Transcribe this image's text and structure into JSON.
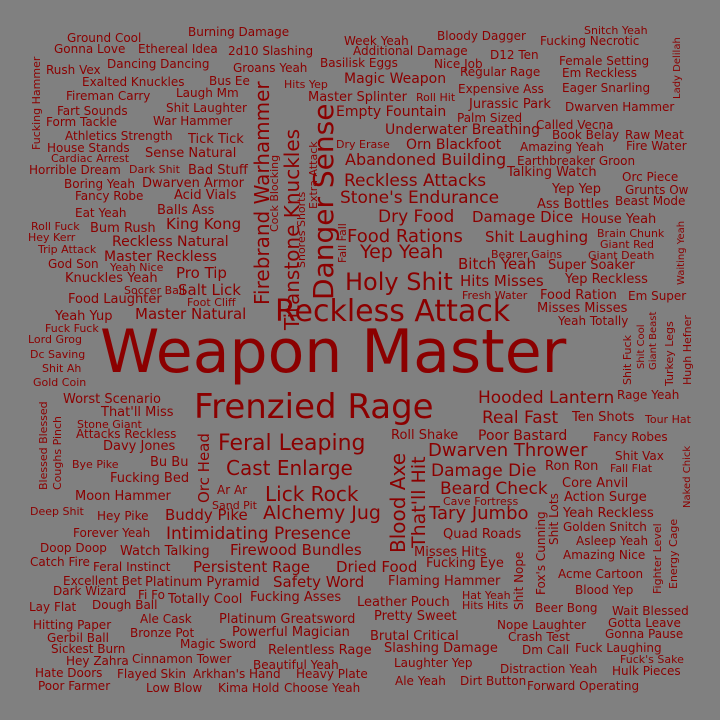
{
  "background_color": "#808080",
  "text_color": "#8b0000",
  "words": [
    {
      "text": "Weapon Master",
      "size": 60
    },
    {
      "text": "Frenzied Rage",
      "size": 34
    },
    {
      "text": "Reckless Attack",
      "size": 30
    },
    {
      "text": "Danger Sense",
      "size": 28
    },
    {
      "text": "Holy Shit",
      "size": 24
    },
    {
      "text": "Feral Leaping",
      "size": 22
    },
    {
      "text": "Cast Enlarge",
      "size": 20
    },
    {
      "text": "Firebrand Warhammer",
      "size": 20
    },
    {
      "text": "Titanstone Knuckles",
      "size": 20
    },
    {
      "text": "Lick Rock",
      "size": 20
    },
    {
      "text": "Blood Axe",
      "size": 20
    },
    {
      "text": "Yep Yeah",
      "size": 19
    },
    {
      "text": "That'll Hit",
      "size": 19
    },
    {
      "text": "Alchemy Jug",
      "size": 19
    },
    {
      "text": "Food Rations",
      "size": 18
    },
    {
      "text": "Dwarven Thrower",
      "size": 18
    },
    {
      "text": "Tary Jumbo",
      "size": 18
    },
    {
      "text": "Beard Check",
      "size": 17
    },
    {
      "text": "Damage Die",
      "size": 17
    },
    {
      "text": "Intimidating Presence",
      "size": 17
    },
    {
      "text": "Reckless Attacks",
      "size": 17
    },
    {
      "text": "Stone's Endurance",
      "size": 17
    },
    {
      "text": "Dry Food",
      "size": 17
    },
    {
      "text": "Hooded Lantern",
      "size": 17
    },
    {
      "text": "Real Fast",
      "size": 17
    },
    {
      "text": "Abandoned Building",
      "size": 16
    },
    {
      "text": "Shit Laughing",
      "size": 15
    },
    {
      "text": "Bitch Yeah",
      "size": 15
    },
    {
      "text": "Hits Misses",
      "size": 15
    },
    {
      "text": "Buddy Pike",
      "size": 15
    },
    {
      "text": "Damage Dice",
      "size": 15
    },
    {
      "text": "Persistent Rage",
      "size": 15
    },
    {
      "text": "Dried Food",
      "size": 15
    },
    {
      "text": "Safety Word",
      "size": 15
    },
    {
      "text": "Firewood Bundles",
      "size": 15
    },
    {
      "text": "Pro Tip",
      "size": 15
    },
    {
      "text": "Salt Lick",
      "size": 15
    },
    {
      "text": "King Kong",
      "size": 15
    },
    {
      "text": "Master Natural",
      "size": 15
    },
    {
      "text": "Reckless Natural",
      "size": 14
    },
    {
      "text": "Master Reckless",
      "size": 14
    },
    {
      "text": "Poor Bastard",
      "size": 14
    },
    {
      "text": "Underwater Breathing",
      "size": 14
    },
    {
      "text": "Orn Blackfoot",
      "size": 14
    },
    {
      "text": "Empty Fountain",
      "size": 14
    },
    {
      "text": "Magic Weapon",
      "size": 14
    },
    {
      "text": "Master Splinter",
      "size": 13
    },
    {
      "text": "Super Soaker",
      "size": 13
    },
    {
      "text": "Yep Reckless",
      "size": 13
    },
    {
      "text": "Ten Shots",
      "size": 13
    },
    {
      "text": "Worst Scenario",
      "size": 13
    },
    {
      "text": "That'll Miss",
      "size": 13
    },
    {
      "text": "Ron Ron",
      "size": 13
    },
    {
      "text": "Fucking Bed",
      "size": 13
    },
    {
      "text": "Moon Hammer",
      "size": 13
    },
    {
      "text": "Quad Roads",
      "size": 13
    },
    {
      "text": "Misses Hits",
      "size": 13
    },
    {
      "text": "Fucking Eye",
      "size": 13
    },
    {
      "text": "Flaming Hammer",
      "size": 13
    },
    {
      "text": "Totally Cool",
      "size": 13
    },
    {
      "text": "Fucking Asses",
      "size": 13
    },
    {
      "text": "Leather Pouch",
      "size": 13
    },
    {
      "text": "Pretty Sweet",
      "size": 13
    },
    {
      "text": "Platinum Greatsword",
      "size": 13
    },
    {
      "text": "Powerful Magician",
      "size": 13
    },
    {
      "text": "Brutal Critical",
      "size": 13
    },
    {
      "text": "Relentless Rage",
      "size": 13
    },
    {
      "text": "Slashing Damage",
      "size": 13
    },
    {
      "text": "Watch Talking",
      "size": 13
    },
    {
      "text": "Platinum Pyramid",
      "size": 13
    },
    {
      "text": "Sense Natural",
      "size": 13
    },
    {
      "text": "Talking Watch",
      "size": 13
    },
    {
      "text": "Acid Vials",
      "size": 13
    },
    {
      "text": "Dwarven Armor",
      "size": 13
    },
    {
      "text": "Bad Stuff",
      "size": 13
    },
    {
      "text": "Tick Tick",
      "size": 13
    },
    {
      "text": "Balls Ass",
      "size": 13
    },
    {
      "text": "Yeah Reckless",
      "size": 13
    },
    {
      "text": "Core Anvil",
      "size": 13
    },
    {
      "text": "Action Surge",
      "size": 13
    },
    {
      "text": "Roll Shake",
      "size": 13
    },
    {
      "text": "Misses Misses",
      "size": 13
    },
    {
      "text": "Yeah Totally",
      "size": 12
    },
    {
      "text": "Food Ration",
      "size": 13
    },
    {
      "text": "Yep Yep",
      "size": 13
    },
    {
      "text": "Ass Bottles",
      "size": 13
    },
    {
      "text": "House Yeah",
      "size": 13
    },
    {
      "text": "Orc Head",
      "size": 15
    },
    {
      "text": "Davy Jones",
      "size": 13
    },
    {
      "text": "Bu Bu",
      "size": 13
    },
    {
      "text": "Attacks Reckless",
      "size": 12
    },
    {
      "text": "Jurassic Park",
      "size": 13
    },
    {
      "text": "Amazing Yeah",
      "size": 12
    },
    {
      "text": "Earthbreaker Groon",
      "size": 12
    },
    {
      "text": "Fancy Robes",
      "size": 12
    },
    {
      "text": "Rage Yeah",
      "size": 12
    },
    {
      "text": "Ar Ar",
      "size": 12
    },
    {
      "text": "Hey Pike",
      "size": 12
    },
    {
      "text": "Forever Yeah",
      "size": 12
    },
    {
      "text": "Doop Doop",
      "size": 12
    },
    {
      "text": "Catch Fire",
      "size": 12
    },
    {
      "text": "Feral Instinct",
      "size": 12
    },
    {
      "text": "Excellent Bet",
      "size": 12
    },
    {
      "text": "Dark Wizard",
      "size": 12
    },
    {
      "text": "Fi Fo",
      "size": 12
    },
    {
      "text": "Lay Flat",
      "size": 12
    },
    {
      "text": "Dough Ball",
      "size": 12
    },
    {
      "text": "Ale Cask",
      "size": 12
    },
    {
      "text": "Hitting Paper",
      "size": 12
    },
    {
      "text": "Bronze Pot",
      "size": 12
    },
    {
      "text": "Gerbil Ball",
      "size": 12
    },
    {
      "text": "Magic Sword",
      "size": 12
    },
    {
      "text": "Sickest Burn",
      "size": 12
    },
    {
      "text": "Hey Zahra",
      "size": 12
    },
    {
      "text": "Cinnamon Tower",
      "size": 12
    },
    {
      "text": "Hate Doors",
      "size": 12
    },
    {
      "text": "Flayed Skin",
      "size": 12
    },
    {
      "text": "Arkhan's Hand",
      "size": 12
    },
    {
      "text": "Poor Farmer",
      "size": 12
    },
    {
      "text": "Low Blow",
      "size": 12
    },
    {
      "text": "Kima Hold",
      "size": 12
    },
    {
      "text": "Choose Yeah",
      "size": 12
    },
    {
      "text": "Heavy Plate",
      "size": 12
    },
    {
      "text": "Beautiful Yeah",
      "size": 12
    },
    {
      "text": "Laughter Yep",
      "size": 12
    },
    {
      "text": "Ale Yeah",
      "size": 12
    },
    {
      "text": "Dirt Button",
      "size": 12
    },
    {
      "text": "Forward Operating",
      "size": 12
    },
    {
      "text": "Distraction Yeah",
      "size": 12
    },
    {
      "text": "Hulk Pieces",
      "size": 12
    },
    {
      "text": "Fuck's Sake",
      "size": 11
    },
    {
      "text": "Dm Call",
      "size": 12
    },
    {
      "text": "Fuck Laughing",
      "size": 12
    },
    {
      "text": "Gonna Pause",
      "size": 12
    },
    {
      "text": "Crash Test",
      "size": 12
    },
    {
      "text": "Nope Laughter",
      "size": 12
    },
    {
      "text": "Gotta Leave",
      "size": 12
    },
    {
      "text": "Beer Bong",
      "size": 12
    },
    {
      "text": "Wait Blessed",
      "size": 12
    },
    {
      "text": "Hat Yeah",
      "size": 11
    },
    {
      "text": "Hits Hits",
      "size": 11
    },
    {
      "text": "Blood Yep",
      "size": 12
    },
    {
      "text": "Acme Cartoon",
      "size": 12
    },
    {
      "text": "Amazing Nice",
      "size": 12
    },
    {
      "text": "Asleep Yeah",
      "size": 12
    },
    {
      "text": "Golden Snitch",
      "size": 12
    },
    {
      "text": "Shit Vax",
      "size": 12
    },
    {
      "text": "Fall Flat",
      "size": 11
    },
    {
      "text": "Cave Fortress",
      "size": 11
    },
    {
      "text": "Sand Pit",
      "size": 11
    },
    {
      "text": "Bye Pike",
      "size": 11
    },
    {
      "text": "Stone Giant",
      "size": 11
    },
    {
      "text": "Deep Shit",
      "size": 11
    },
    {
      "text": "Gold Coin",
      "size": 11
    },
    {
      "text": "Shit Ah",
      "size": 11
    },
    {
      "text": "Dc Saving",
      "size": 11
    },
    {
      "text": "Lord Grog",
      "size": 11
    },
    {
      "text": "Fuck Fuck",
      "size": 11
    },
    {
      "text": "Yeah Yup",
      "size": 13
    },
    {
      "text": "Food Laughter",
      "size": 13
    },
    {
      "text": "Knuckles Yeah",
      "size": 13
    },
    {
      "text": "God Son",
      "size": 12
    },
    {
      "text": "Yeah Nice",
      "size": 11
    },
    {
      "text": "Soccer Ball",
      "size": 11
    },
    {
      "text": "Foot Cliff",
      "size": 11
    },
    {
      "text": "Trip Attack",
      "size": 11
    },
    {
      "text": "Hey Kerr",
      "size": 11
    },
    {
      "text": "Roll Fuck",
      "size": 11
    },
    {
      "text": "Bum Rush",
      "size": 13
    },
    {
      "text": "Eat Yeah",
      "size": 12
    },
    {
      "text": "Fancy Robe",
      "size": 12
    },
    {
      "text": "Boring Yeah",
      "size": 12
    },
    {
      "text": "Horrible Dream",
      "size": 12
    },
    {
      "text": "Dark Shit",
      "size": 11
    },
    {
      "text": "Cardiac Arrest",
      "size": 11
    },
    {
      "text": "House Stands",
      "size": 12
    },
    {
      "text": "Athletics Strength",
      "size": 12
    },
    {
      "text": "Form Tackle",
      "size": 12
    },
    {
      "text": "Fart Sounds",
      "size": 12
    },
    {
      "text": "Fireman Carry",
      "size": 12
    },
    {
      "text": "Exalted Knuckles",
      "size": 12
    },
    {
      "text": "Rush Vex",
      "size": 12
    },
    {
      "text": "Gonna Love",
      "size": 12
    },
    {
      "text": "Ground Cool",
      "size": 12
    },
    {
      "text": "Ethereal Idea",
      "size": 12
    },
    {
      "text": "Dancing Dancing",
      "size": 12
    },
    {
      "text": "Burning Damage",
      "size": 12
    },
    {
      "text": "2d10 Slashing",
      "size": 12
    },
    {
      "text": "Groans Yeah",
      "size": 12
    },
    {
      "text": "Bus Ee",
      "size": 12
    },
    {
      "text": "Laugh Mm",
      "size": 12
    },
    {
      "text": "Shit Laughter",
      "size": 12
    },
    {
      "text": "War Hammer",
      "size": 12
    },
    {
      "text": "Hits Yep",
      "size": 11
    },
    {
      "text": "Basilisk Eggs",
      "size": 12
    },
    {
      "text": "Week Yeah",
      "size": 12
    },
    {
      "text": "Additional Damage",
      "size": 12
    },
    {
      "text": "Bloody Dagger",
      "size": 12
    },
    {
      "text": "D12 Ten",
      "size": 12
    },
    {
      "text": "Nice Job",
      "size": 12
    },
    {
      "text": "Regular Rage",
      "size": 12
    },
    {
      "text": "Expensive Ass",
      "size": 12
    },
    {
      "text": "Palm Sized",
      "size": 12
    },
    {
      "text": "Roll Hit",
      "size": 11
    },
    {
      "text": "Fucking Necrotic",
      "size": 12
    },
    {
      "text": "Snitch Yeah",
      "size": 11
    },
    {
      "text": "Female Setting",
      "size": 12
    },
    {
      "text": "Em Reckless",
      "size": 12
    },
    {
      "text": "Eager Snarling",
      "size": 12
    },
    {
      "text": "Dwarven Hammer",
      "size": 12
    },
    {
      "text": "Called Vecna",
      "size": 12
    },
    {
      "text": "Book Belay",
      "size": 12
    },
    {
      "text": "Raw Meat",
      "size": 12
    },
    {
      "text": "Fire Water",
      "size": 12
    },
    {
      "text": "Dry Erase",
      "size": 11
    },
    {
      "text": "Orc Piece",
      "size": 12
    },
    {
      "text": "Grunts Ow",
      "size": 12
    },
    {
      "text": "Beast Mode",
      "size": 12
    },
    {
      "text": "Brain Chunk",
      "size": 11
    },
    {
      "text": "Giant Red",
      "size": 11
    },
    {
      "text": "Giant Death",
      "size": 11
    },
    {
      "text": "Bearer Gains",
      "size": 11
    },
    {
      "text": "Fresh Water",
      "size": 11
    },
    {
      "text": "Em Super",
      "size": 12
    },
    {
      "text": "Tour Hat",
      "size": 11
    },
    {
      "text": "Hugh Hefner",
      "size": 11
    },
    {
      "text": "Turkey Legs",
      "size": 11
    },
    {
      "text": "Giant Beast",
      "size": 10
    },
    {
      "text": "Shit Cool",
      "size": 10
    },
    {
      "text": "Shit Fuck",
      "size": 11
    },
    {
      "text": "Blessed Blessed",
      "size": 11
    },
    {
      "text": "Coughs Pinch",
      "size": 11
    },
    {
      "text": "Naked Chick",
      "size": 10
    },
    {
      "text": "Energy Cage",
      "size": 11
    },
    {
      "text": "Fighter Level",
      "size": 11
    },
    {
      "text": "Waiting Yeah",
      "size": 10
    },
    {
      "text": "Lady Delilah",
      "size": 10
    },
    {
      "text": "Fucking Hammer",
      "size": 11
    },
    {
      "text": "Cock Blocking",
      "size": 11
    },
    {
      "text": "Snores Shorts",
      "size": 11
    },
    {
      "text": "Extra Attack",
      "size": 11
    },
    {
      "text": "Fall Fall",
      "size": 11
    },
    {
      "text": "Fox's Cunning",
      "size": 12
    },
    {
      "text": "Shit Nope",
      "size": 12
    },
    {
      "text": "Shit Lots",
      "size": 12
    }
  ]
}
